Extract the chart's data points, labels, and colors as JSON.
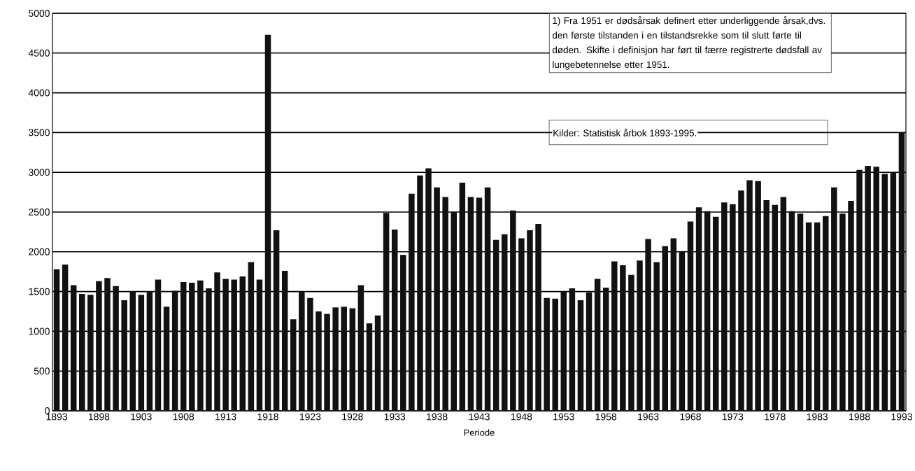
{
  "chart_data": {
    "type": "bar",
    "xlabel": "Periode",
    "categories": [
      "1893",
      null,
      null,
      null,
      null,
      "1898",
      null,
      null,
      null,
      null,
      "1903",
      null,
      null,
      null,
      null,
      "1908",
      null,
      null,
      null,
      null,
      "1913",
      null,
      null,
      null,
      null,
      "1918",
      null,
      null,
      null,
      null,
      "1923",
      null,
      null,
      null,
      null,
      "1928",
      null,
      null,
      null,
      null,
      "1933",
      null,
      null,
      null,
      null,
      "1938",
      null,
      null,
      null,
      null,
      "1943",
      null,
      null,
      null,
      null,
      "1948",
      null,
      null,
      null,
      null,
      "1953",
      null,
      null,
      null,
      null,
      "1958",
      null,
      null,
      null,
      null,
      "1963",
      null,
      null,
      null,
      null,
      "1968",
      null,
      null,
      null,
      null,
      "1973",
      null,
      null,
      null,
      null,
      "1978",
      null,
      null,
      null,
      null,
      "1983",
      null,
      null,
      null,
      null,
      "1988",
      null,
      null,
      null,
      null,
      "1993"
    ],
    "values": [
      1780,
      1840,
      1580,
      1470,
      1460,
      1630,
      1670,
      1570,
      1390,
      1500,
      1460,
      1500,
      1650,
      1310,
      1510,
      1620,
      1610,
      1640,
      1540,
      1740,
      1660,
      1650,
      1690,
      1870,
      1650,
      4730,
      2270,
      1760,
      1150,
      1500,
      1420,
      1250,
      1220,
      1300,
      1310,
      1290,
      1580,
      1100,
      1200,
      2490,
      2280,
      1960,
      2730,
      2960,
      3050,
      2810,
      2690,
      2500,
      2870,
      2690,
      2680,
      2810,
      2150,
      2220,
      2520,
      2170,
      2270,
      2350,
      1420,
      1410,
      1500,
      1540,
      1390,
      1490,
      1660,
      1550,
      1880,
      1830,
      1710,
      1890,
      2160,
      1870,
      2070,
      2170,
      2010,
      2380,
      2560,
      2510,
      2440,
      2620,
      2600,
      2770,
      2900,
      2890,
      2650,
      2590,
      2690,
      2510,
      2480,
      2370,
      2370,
      2450,
      2810,
      2480,
      2640,
      3030,
      3080,
      3070,
      2980,
      3000,
      3500
    ],
    "color": "#111111",
    "ylim": [
      0,
      5000
    ],
    "yticks": [
      0,
      500,
      1000,
      1500,
      2000,
      2500,
      3000,
      3500,
      4000,
      4500,
      5000
    ],
    "grid": "y",
    "annotations": [
      "1) Fra 1951 er dødsårsak definert etter underliggende årsak,dvs. den første tilstanden i en tilstandsrekke som til slutt førte til døden. Skifte i definisjon har ført til færre registrerte dødsfall av lungebetennelse etter 1951.",
      "Kilder: Statistisk årbok 1893-1995."
    ]
  }
}
